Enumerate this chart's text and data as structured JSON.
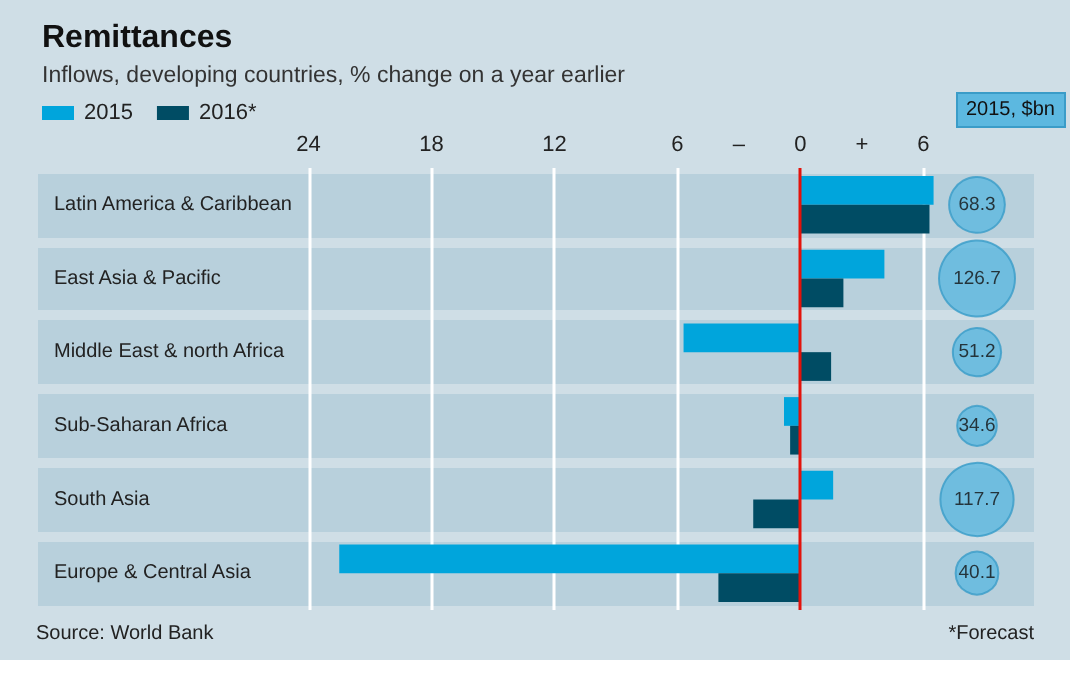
{
  "chart_data": [
    {
      "type": "bar",
      "orientation": "horizontal",
      "title": "Remittances",
      "subtitle": "Inflows, developing countries, % change on a year earlier",
      "categories": [
        "Latin America & Caribbean",
        "East Asia & Pacific",
        "Middle East & north Africa",
        "Sub-Saharan Africa",
        "South Asia",
        "Europe & Central Asia"
      ],
      "series": [
        {
          "name": "2015",
          "color": "#00a5dc",
          "values": [
            6.5,
            4.1,
            -5.7,
            -0.8,
            1.6,
            -22.5
          ]
        },
        {
          "name": "2016*",
          "color": "#004c64",
          "values": [
            6.3,
            2.1,
            1.5,
            -0.5,
            -2.3,
            -4.0
          ]
        }
      ],
      "xlim": [
        -37.2,
        11.4
      ],
      "ref_lines": [
        {
          "axis": "x",
          "value": 0,
          "color": "#e3120b"
        }
      ],
      "xticks": [
        {
          "value": -24,
          "label": "24"
        },
        {
          "value": -18,
          "label": "18"
        },
        {
          "value": -12,
          "label": "12"
        },
        {
          "value": -6,
          "label": "6"
        },
        {
          "value": -3,
          "label": "–"
        },
        0,
        {
          "value": 3,
          "label": "+"
        },
        6
      ],
      "grid": "x",
      "legend": "top left",
      "annotations": [
        "Source: World Bank",
        "*Forecast"
      ]
    },
    {
      "type": "other",
      "title": "2015, $bn",
      "categories": [
        null,
        null,
        null,
        null,
        null,
        null
      ],
      "values": [
        68.3,
        126.7,
        51.2,
        34.6,
        117.7,
        40.1
      ],
      "color": "#5cb8e0",
      "data_labels": true
    }
  ]
}
